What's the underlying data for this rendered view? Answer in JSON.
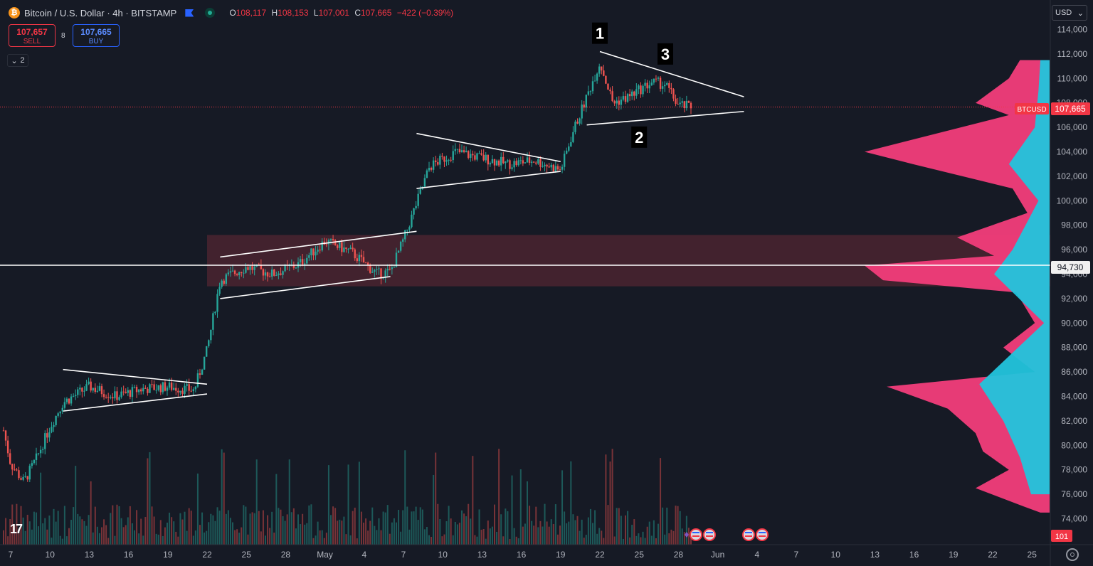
{
  "header": {
    "symbol_title": "Bitcoin / U.S. Dollar · 4h · BITSTAMP",
    "coin_glyph": "₿",
    "ohlc": {
      "o_label": "O",
      "o": "108,117",
      "h_label": "H",
      "h": "108,153",
      "l_label": "L",
      "l": "107,001",
      "c_label": "C",
      "c": "107,665",
      "change": "−422 (−0.39%)"
    }
  },
  "trade": {
    "sell_price": "107,657",
    "sell_label": "SELL",
    "spread": "8",
    "buy_price": "107,665",
    "buy_label": "BUY"
  },
  "indicators_toggle": {
    "glyph": "⌄",
    "count": "2"
  },
  "price_axis": {
    "currency": "USD",
    "currency_glyph": "⌄",
    "symbol_tag": "BTCUSD",
    "last_price_label": "107,665",
    "hline_label": "94,730",
    "countdown": "101"
  },
  "annotations": {
    "label_1": "1",
    "label_2": "2",
    "label_3": "3"
  },
  "tv_logo": "17",
  "colors": {
    "up": "#26a69a",
    "down": "#ef5350",
    "bg": "#161a25",
    "volume_profile_pink": "#f23d7a",
    "volume_profile_cyan": "#22c4dc",
    "zone": "#4a2530",
    "last_price": "#f23645"
  },
  "chart_data": {
    "type": "candlestick",
    "title": "Bitcoin / U.S. Dollar · 4h · BITSTAMP",
    "y_range": [
      73000,
      115500
    ],
    "y_ticks": [
      74000,
      76000,
      78000,
      80000,
      82000,
      84000,
      86000,
      88000,
      90000,
      92000,
      94000,
      96000,
      98000,
      100000,
      102000,
      104000,
      106000,
      108000,
      110000,
      112000,
      114000
    ],
    "x_ticks": [
      "7",
      "10",
      "13",
      "16",
      "19",
      "22",
      "25",
      "28",
      "May",
      "4",
      "7",
      "10",
      "13",
      "16",
      "19",
      "22",
      "25",
      "28",
      "Jun",
      "4",
      "7",
      "10",
      "13",
      "16",
      "19",
      "22",
      "25"
    ],
    "x_range_days": [
      "2025-04-06",
      "2025-06-26"
    ],
    "last_price": 107665,
    "horizontal_line": 94730,
    "zone": {
      "y_from": 93000,
      "y_to": 97200,
      "x_from": "2025-04-22",
      "x_to": "2025-06-26"
    },
    "close_path": [
      {
        "date": "2025-04-06",
        "close": 83500
      },
      {
        "date": "2025-04-07",
        "close": 78500
      },
      {
        "date": "2025-04-08",
        "close": 77000
      },
      {
        "date": "2025-04-09",
        "close": 79000
      },
      {
        "date": "2025-04-10",
        "close": 81500
      },
      {
        "date": "2025-04-11",
        "close": 83500
      },
      {
        "date": "2025-04-13",
        "close": 84800
      },
      {
        "date": "2025-04-15",
        "close": 84000
      },
      {
        "date": "2025-04-17",
        "close": 84600
      },
      {
        "date": "2025-04-19",
        "close": 84800
      },
      {
        "date": "2025-04-21",
        "close": 84500
      },
      {
        "date": "2025-04-22",
        "close": 87800
      },
      {
        "date": "2025-04-23",
        "close": 93500
      },
      {
        "date": "2025-04-25",
        "close": 94600
      },
      {
        "date": "2025-04-27",
        "close": 94000
      },
      {
        "date": "2025-04-29",
        "close": 94800
      },
      {
        "date": "2025-05-01",
        "close": 96700
      },
      {
        "date": "2025-05-03",
        "close": 95800
      },
      {
        "date": "2025-05-05",
        "close": 94000
      },
      {
        "date": "2025-05-06",
        "close": 94200
      },
      {
        "date": "2025-05-07",
        "close": 96800
      },
      {
        "date": "2025-05-08",
        "close": 99800
      },
      {
        "date": "2025-05-09",
        "close": 102800
      },
      {
        "date": "2025-05-11",
        "close": 104000
      },
      {
        "date": "2025-05-13",
        "close": 103500
      },
      {
        "date": "2025-05-15",
        "close": 103000
      },
      {
        "date": "2025-05-17",
        "close": 103300
      },
      {
        "date": "2025-05-19",
        "close": 102500
      },
      {
        "date": "2025-05-20",
        "close": 105800
      },
      {
        "date": "2025-05-21",
        "close": 108500
      },
      {
        "date": "2025-05-22",
        "close": 111300
      },
      {
        "date": "2025-05-23",
        "close": 108000
      },
      {
        "date": "2025-05-24",
        "close": 108400
      },
      {
        "date": "2025-05-26",
        "close": 109700
      },
      {
        "date": "2025-05-27",
        "close": 109500
      },
      {
        "date": "2025-05-28",
        "close": 107800
      },
      {
        "date": "2025-05-29",
        "close": 107665
      }
    ],
    "trend_lines": [
      {
        "from": [
          "2025-04-11",
          86200
        ],
        "to": [
          "2025-04-22",
          85000
        ]
      },
      {
        "from": [
          "2025-04-11",
          82800
        ],
        "to": [
          "2025-04-22",
          84200
        ]
      },
      {
        "from": [
          "2025-04-23",
          95400
        ],
        "to": [
          "2025-05-08",
          97500
        ]
      },
      {
        "from": [
          "2025-04-23",
          92000
        ],
        "to": [
          "2025-05-06",
          93800
        ]
      },
      {
        "from": [
          "2025-05-08",
          105500
        ],
        "to": [
          "2025-05-19",
          103200
        ]
      },
      {
        "from": [
          "2025-05-08",
          101000
        ],
        "to": [
          "2025-05-19",
          102400
        ]
      },
      {
        "from": [
          "2025-05-22",
          112200
        ],
        "to": [
          "2025-06-02",
          108500
        ]
      },
      {
        "from": [
          "2025-05-21",
          106200
        ],
        "to": [
          "2025-06-02",
          107300
        ]
      }
    ],
    "wave_labels": [
      {
        "label": "1",
        "date": "2025-05-22",
        "price": 113700
      },
      {
        "label": "2",
        "date": "2025-05-25",
        "price": 105200
      },
      {
        "label": "3",
        "date": "2025-05-27",
        "price": 112000
      }
    ],
    "volume_profile_pink": [
      {
        "price": 111500,
        "volume": 0.16
      },
      {
        "price": 110000,
        "volume": 0.22
      },
      {
        "price": 108000,
        "volume": 0.4
      },
      {
        "price": 107000,
        "volume": 0.22
      },
      {
        "price": 104000,
        "volume": 1.0
      },
      {
        "price": 103000,
        "volume": 0.74
      },
      {
        "price": 101000,
        "volume": 0.2
      },
      {
        "price": 99000,
        "volume": 0.12
      },
      {
        "price": 97000,
        "volume": 0.5
      },
      {
        "price": 95500,
        "volume": 0.3
      },
      {
        "price": 94700,
        "volume": 1.0
      },
      {
        "price": 93500,
        "volume": 0.9
      },
      {
        "price": 92500,
        "volume": 0.18
      },
      {
        "price": 90000,
        "volume": 0.08
      },
      {
        "price": 88000,
        "volume": 0.25
      },
      {
        "price": 86000,
        "volume": 0.08
      },
      {
        "price": 84800,
        "volume": 0.88
      },
      {
        "price": 83000,
        "volume": 0.55
      },
      {
        "price": 81000,
        "volume": 0.4
      },
      {
        "price": 79500,
        "volume": 0.36
      },
      {
        "price": 78000,
        "volume": 0.22
      },
      {
        "price": 76500,
        "volume": 0.4
      },
      {
        "price": 75000,
        "volume": 0.14
      },
      {
        "price": 74500,
        "volume": 0.05
      }
    ],
    "volume_profile_cyan": [
      {
        "price": 111500,
        "volume": 0.05
      },
      {
        "price": 109000,
        "volume": 0.06
      },
      {
        "price": 106000,
        "volume": 0.08
      },
      {
        "price": 103000,
        "volume": 0.22
      },
      {
        "price": 100000,
        "volume": 0.06
      },
      {
        "price": 96000,
        "volume": 0.2
      },
      {
        "price": 94000,
        "volume": 0.3
      },
      {
        "price": 90000,
        "volume": 0.03
      },
      {
        "price": 85000,
        "volume": 0.38
      },
      {
        "price": 82000,
        "volume": 0.25
      },
      {
        "price": 79000,
        "volume": 0.16
      },
      {
        "price": 76000,
        "volume": 0.1
      }
    ]
  }
}
